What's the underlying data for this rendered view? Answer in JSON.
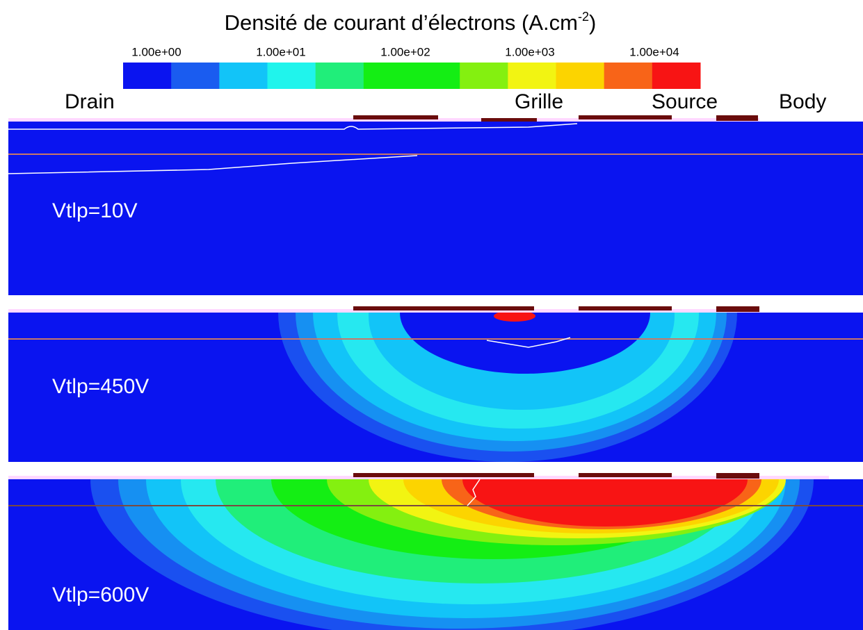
{
  "header": {
    "title": "Densité de courant d’électrons (A.cm",
    "title_sup": "-2",
    "title_end": ")"
  },
  "colorbar": {
    "labels": [
      "1.00e+00",
      "1.00e+01",
      "1.00e+02",
      "1.00e+03",
      "1.00e+04"
    ],
    "colors": [
      "#0a14f0",
      "#1a5cf0",
      "#12c4f8",
      "#20f4ec",
      "#20ee7a",
      "#14ee14",
      "#14ee14",
      "#84f010",
      "#f2f412",
      "#fcd400",
      "#f86418",
      "#f81414"
    ]
  },
  "regions": [
    "Drain",
    "Grille",
    "Source",
    "Body"
  ],
  "panels": [
    "Vtlp=10V",
    "Vtlp=450V",
    "Vtlp=600V"
  ]
}
